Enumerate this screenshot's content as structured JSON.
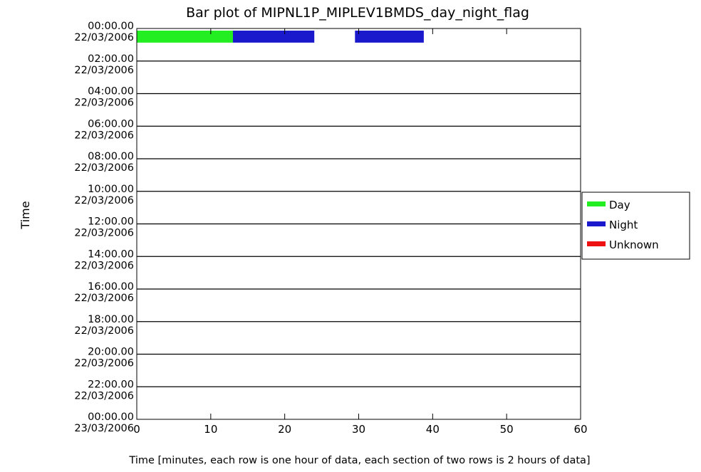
{
  "chart_data": {
    "type": "bar",
    "title": "Bar plot of  MIPNL1P_MIPLEV1BMDS_day_night_flag",
    "xlabel": "Time [minutes, each row is one hour of data, each section of two rows is 2 hours of data]",
    "ylabel": "Time",
    "xlim": [
      0,
      60
    ],
    "x_ticks": [
      "0",
      "10",
      "20",
      "30",
      "40",
      "50",
      "60"
    ],
    "x_tick_values": [
      0,
      10,
      20,
      30,
      40,
      50,
      60
    ],
    "y_ticks": [
      {
        "time": "00:00.00",
        "date": "22/03/2006"
      },
      {
        "time": "02:00.00",
        "date": "22/03/2006"
      },
      {
        "time": "04:00.00",
        "date": "22/03/2006"
      },
      {
        "time": "06:00.00",
        "date": "22/03/2006"
      },
      {
        "time": "08:00.00",
        "date": "22/03/2006"
      },
      {
        "time": "10:00.00",
        "date": "22/03/2006"
      },
      {
        "time": "12:00.00",
        "date": "22/03/2006"
      },
      {
        "time": "14:00.00",
        "date": "22/03/2006"
      },
      {
        "time": "16:00.00",
        "date": "22/03/2006"
      },
      {
        "time": "18:00.00",
        "date": "22/03/2006"
      },
      {
        "time": "20:00.00",
        "date": "22/03/2006"
      },
      {
        "time": "22:00.00",
        "date": "22/03/2006"
      },
      {
        "time": "00:00.00",
        "date": "23/03/2006"
      }
    ],
    "legend": {
      "position": "right",
      "entries": [
        {
          "label": "Day",
          "color": "#22ee22"
        },
        {
          "label": "Night",
          "color": "#1a1acc"
        },
        {
          "label": "Unknown",
          "color": "#ee1111"
        }
      ]
    },
    "segments": [
      {
        "row_start_time": "00:00.00",
        "start_min": 0.0,
        "end_min": 13.0,
        "flag": "Day"
      },
      {
        "row_start_time": "00:00.00",
        "start_min": 13.0,
        "end_min": 24.0,
        "flag": "Night"
      },
      {
        "row_start_time": "00:00.00",
        "start_min": 29.5,
        "end_min": 38.8,
        "flag": "Night"
      }
    ],
    "grid": true
  }
}
